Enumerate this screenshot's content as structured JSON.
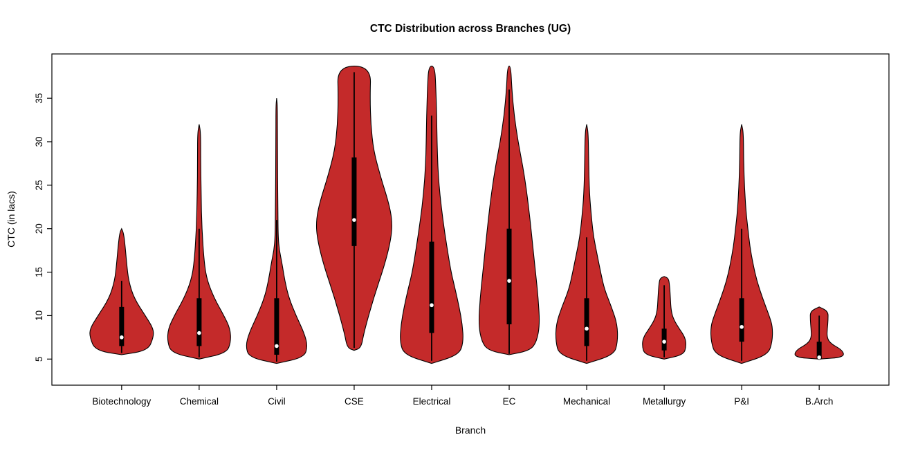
{
  "chart_data": {
    "type": "violin",
    "title": "CTC Distribution across Branches (UG)",
    "xlabel": "Branch",
    "ylabel": "CTC (in lacs)",
    "ylim": [
      2.0,
      40.1
    ],
    "yticks": [
      5,
      10,
      15,
      20,
      25,
      30,
      35
    ],
    "grid": false,
    "violin_fill": "#C42A2A",
    "violin_stroke": "#000000",
    "categories": [
      "Biotechnology",
      "Chemical",
      "Civil",
      "CSE",
      "Electrical",
      "EC",
      "Mechanical",
      "Metallurgy",
      "P&I",
      "B.Arch"
    ],
    "series": [
      {
        "name": "Biotechnology",
        "density_profile": [
          [
            5.5,
            0
          ],
          [
            6,
            0.68
          ],
          [
            7.5,
            0.82
          ],
          [
            8.5,
            0.82
          ],
          [
            10,
            0.61
          ],
          [
            12,
            0.32
          ],
          [
            14,
            0.18
          ],
          [
            16,
            0.13
          ],
          [
            18,
            0.09
          ],
          [
            19.5,
            0.05
          ],
          [
            20,
            0
          ]
        ],
        "box": {
          "whisker_low": 5.7,
          "q1": 6.5,
          "median": 7.5,
          "q3": 11,
          "whisker_high": 14
        }
      },
      {
        "name": "Chemical",
        "density_profile": [
          [
            5,
            0
          ],
          [
            5.7,
            0.71
          ],
          [
            7,
            0.82
          ],
          [
            8.5,
            0.8
          ],
          [
            10,
            0.64
          ],
          [
            12,
            0.39
          ],
          [
            14,
            0.21
          ],
          [
            16,
            0.13
          ],
          [
            20,
            0.07
          ],
          [
            24,
            0.05
          ],
          [
            28,
            0.04
          ],
          [
            31,
            0.04
          ],
          [
            32,
            0
          ]
        ],
        "box": {
          "whisker_low": 5.2,
          "q1": 6.5,
          "median": 8,
          "q3": 12,
          "whisker_high": 20
        }
      },
      {
        "name": "Civil",
        "density_profile": [
          [
            4.5,
            0
          ],
          [
            5.2,
            0.71
          ],
          [
            6.5,
            0.8
          ],
          [
            8,
            0.71
          ],
          [
            10,
            0.5
          ],
          [
            12,
            0.32
          ],
          [
            14,
            0.21
          ],
          [
            16,
            0.14
          ],
          [
            17.5,
            0.07
          ],
          [
            19,
            0.04
          ],
          [
            22,
            0.03
          ],
          [
            30,
            0.02
          ],
          [
            34,
            0.02
          ],
          [
            35,
            0
          ]
        ],
        "box": {
          "whisker_low": 4.7,
          "q1": 5.5,
          "median": 6.5,
          "q3": 12,
          "whisker_high": 21
        }
      },
      {
        "name": "CSE",
        "density_profile": [
          [
            6,
            0
          ],
          [
            6.3,
            0.18
          ],
          [
            8,
            0.25
          ],
          [
            12,
            0.5
          ],
          [
            16,
            0.8
          ],
          [
            19,
            0.96
          ],
          [
            21,
            0.98
          ],
          [
            23,
            0.89
          ],
          [
            26,
            0.68
          ],
          [
            29,
            0.5
          ],
          [
            32,
            0.43
          ],
          [
            35,
            0.41
          ],
          [
            38.7,
            0.43
          ]
        ],
        "box": {
          "whisker_low": 6.3,
          "q1": 18,
          "median": 21,
          "q3": 28.2,
          "whisker_high": 38
        }
      },
      {
        "name": "Electrical",
        "density_profile": [
          [
            4.5,
            0
          ],
          [
            5.5,
            0.71
          ],
          [
            7,
            0.82
          ],
          [
            9,
            0.79
          ],
          [
            11,
            0.71
          ],
          [
            13,
            0.61
          ],
          [
            15,
            0.5
          ],
          [
            18,
            0.39
          ],
          [
            21,
            0.29
          ],
          [
            24,
            0.21
          ],
          [
            27,
            0.16
          ],
          [
            30,
            0.14
          ],
          [
            33,
            0.13
          ],
          [
            36,
            0.11
          ],
          [
            38.7,
            0.08
          ]
        ],
        "box": {
          "whisker_low": 4.8,
          "q1": 8,
          "median": 11.2,
          "q3": 18.5,
          "whisker_high": 33
        }
      },
      {
        "name": "EC",
        "density_profile": [
          [
            5.5,
            0
          ],
          [
            6,
            0.54
          ],
          [
            7,
            0.71
          ],
          [
            9,
            0.79
          ],
          [
            12,
            0.75
          ],
          [
            15,
            0.68
          ],
          [
            18,
            0.61
          ],
          [
            21,
            0.54
          ],
          [
            24,
            0.46
          ],
          [
            27,
            0.36
          ],
          [
            30,
            0.23
          ],
          [
            33,
            0.13
          ],
          [
            36,
            0.07
          ],
          [
            38.7,
            0.04
          ]
        ],
        "box": {
          "whisker_low": 5.6,
          "q1": 9,
          "median": 14,
          "q3": 20,
          "whisker_high": 36
        }
      },
      {
        "name": "Mechanical",
        "density_profile": [
          [
            4.5,
            0
          ],
          [
            5.5,
            0.71
          ],
          [
            7,
            0.8
          ],
          [
            9,
            0.79
          ],
          [
            11,
            0.64
          ],
          [
            13,
            0.46
          ],
          [
            15,
            0.36
          ],
          [
            17,
            0.27
          ],
          [
            19,
            0.18
          ],
          [
            21,
            0.13
          ],
          [
            24,
            0.07
          ],
          [
            28,
            0.05
          ],
          [
            31,
            0.04
          ],
          [
            32,
            0
          ]
        ],
        "box": {
          "whisker_low": 4.8,
          "q1": 6.5,
          "median": 8.5,
          "q3": 12,
          "whisker_high": 19
        }
      },
      {
        "name": "Metallurgy",
        "density_profile": [
          [
            5,
            0
          ],
          [
            5.5,
            0.5
          ],
          [
            6.5,
            0.57
          ],
          [
            7.5,
            0.54
          ],
          [
            8.5,
            0.39
          ],
          [
            9.5,
            0.25
          ],
          [
            10.5,
            0.18
          ],
          [
            12,
            0.16
          ],
          [
            13.5,
            0.14
          ],
          [
            14.3,
            0.11
          ],
          [
            14.5,
            0
          ]
        ],
        "box": {
          "whisker_low": 5.2,
          "q1": 6,
          "median": 7,
          "q3": 8.5,
          "whisker_high": 13.5
        }
      },
      {
        "name": "P&I",
        "density_profile": [
          [
            4.5,
            0
          ],
          [
            5.5,
            0.68
          ],
          [
            7,
            0.79
          ],
          [
            8.7,
            0.8
          ],
          [
            10,
            0.71
          ],
          [
            12,
            0.54
          ],
          [
            14,
            0.39
          ],
          [
            16,
            0.29
          ],
          [
            18,
            0.21
          ],
          [
            20,
            0.16
          ],
          [
            22,
            0.11
          ],
          [
            25,
            0.07
          ],
          [
            28,
            0.05
          ],
          [
            31,
            0.045
          ],
          [
            32,
            0
          ]
        ],
        "box": {
          "whisker_low": 4.8,
          "q1": 7,
          "median": 8.7,
          "q3": 12,
          "whisker_high": 20
        }
      },
      {
        "name": "B.Arch",
        "density_profile": [
          [
            5,
            0
          ],
          [
            5.2,
            0.64
          ],
          [
            6,
            0.61
          ],
          [
            6.8,
            0.29
          ],
          [
            7.5,
            0.2
          ],
          [
            8.5,
            0.21
          ],
          [
            9.5,
            0.23
          ],
          [
            10.5,
            0.23
          ],
          [
            11,
            0
          ]
        ],
        "box": {
          "whisker_low": 5,
          "q1": 5,
          "median": 5.2,
          "q3": 7,
          "whisker_high": 10
        }
      }
    ]
  }
}
